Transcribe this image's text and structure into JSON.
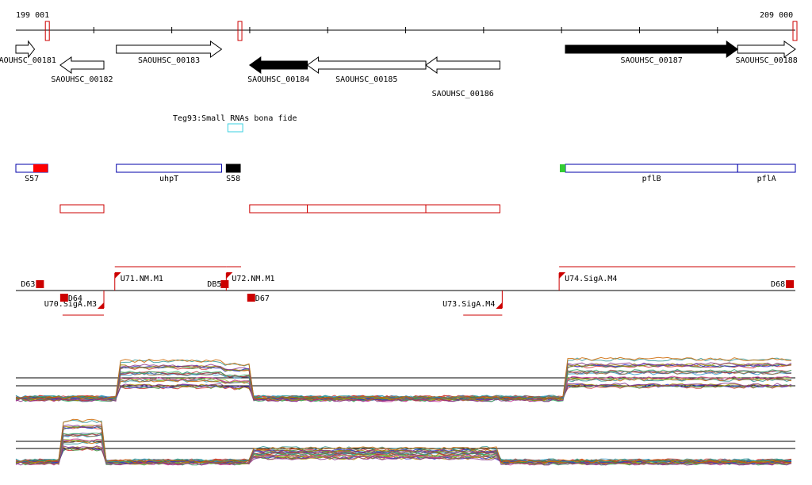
{
  "ruler": {
    "start_label": "199 001",
    "end_label": "209 000",
    "start_bp": 199001,
    "end_bp": 209000
  },
  "genes": [
    {
      "id": "SAOUHSC_00181",
      "start": 199001,
      "end": 199240,
      "strand": "+",
      "fill": "white"
    },
    {
      "id": "SAOUHSC_00182",
      "start": 199570,
      "end": 200130,
      "strand": "-",
      "fill": "white"
    },
    {
      "id": "SAOUHSC_00183",
      "start": 200290,
      "end": 201640,
      "strand": "+",
      "fill": "white"
    },
    {
      "id": "SAOUHSC_00184",
      "start": 202000,
      "end": 202740,
      "strand": "-",
      "fill": "black"
    },
    {
      "id": "SAOUHSC_00185",
      "start": 202740,
      "end": 204260,
      "strand": "-",
      "fill": "white"
    },
    {
      "id": "SAOUHSC_00186",
      "start": 204260,
      "end": 205210,
      "strand": "-",
      "fill": "white"
    },
    {
      "id": "SAOUHSC_00187",
      "start": 206050,
      "end": 208260,
      "strand": "+",
      "fill": "black"
    },
    {
      "id": "SAOUHSC_00188",
      "start": 208260,
      "end": 209000,
      "strand": "+",
      "fill": "white"
    }
  ],
  "small_rna": {
    "label": "Teg93:Small RNAs bona fide",
    "start": 201700,
    "end": 201850,
    "color": "#39d0e0"
  },
  "features": [
    {
      "label": "S57",
      "start": 199001,
      "end": 199410,
      "fill": "#ff0000",
      "outline": "#0000aa",
      "box_start": 199001,
      "box_end": 199410
    },
    {
      "label": "uhpT",
      "start": 200290,
      "end": 201640,
      "fill": "none",
      "outline": "#0000aa"
    },
    {
      "label": "S58",
      "start": 201700,
      "end": 201880,
      "fill": "#000000",
      "outline": "#000000"
    },
    {
      "label": "pflB",
      "start": 206050,
      "end": 208260,
      "fill": "none",
      "outline": "#0000aa"
    },
    {
      "label": "pflA",
      "start": 208260,
      "end": 209000,
      "fill": "none",
      "outline": "#0000aa"
    }
  ],
  "operons": [
    {
      "start": 199570,
      "end": 200130
    },
    {
      "start": 202000,
      "end": 202740
    },
    {
      "start": 202740,
      "end": 204260
    },
    {
      "start": 204260,
      "end": 205210
    }
  ],
  "tss_top": [
    {
      "label": "U71.NM.M1",
      "pos": 200270,
      "end": 201700
    },
    {
      "label": "U72.NM.M1",
      "pos": 201700,
      "end": 201890
    },
    {
      "label": "U74.SigA.M4",
      "pos": 205970,
      "end": 209000
    }
  ],
  "tss_bottom": [
    {
      "label": "U70.SigA.M3",
      "pos": 200130,
      "end": 199600
    },
    {
      "label": "U73.SigA.M4",
      "pos": 205240,
      "end": 204740
    }
  ],
  "terminators": [
    {
      "label": "D63",
      "pos": 199310
    },
    {
      "label": "D64",
      "pos": 199620
    },
    {
      "label": "DB5",
      "pos": 201680
    },
    {
      "label": "D67",
      "pos": 202020
    },
    {
      "label": "D68",
      "pos": 208930
    }
  ],
  "colors": {
    "accent": "#cc0000",
    "strand_box": "#0000aa",
    "green_marker": "#33cc33"
  }
}
